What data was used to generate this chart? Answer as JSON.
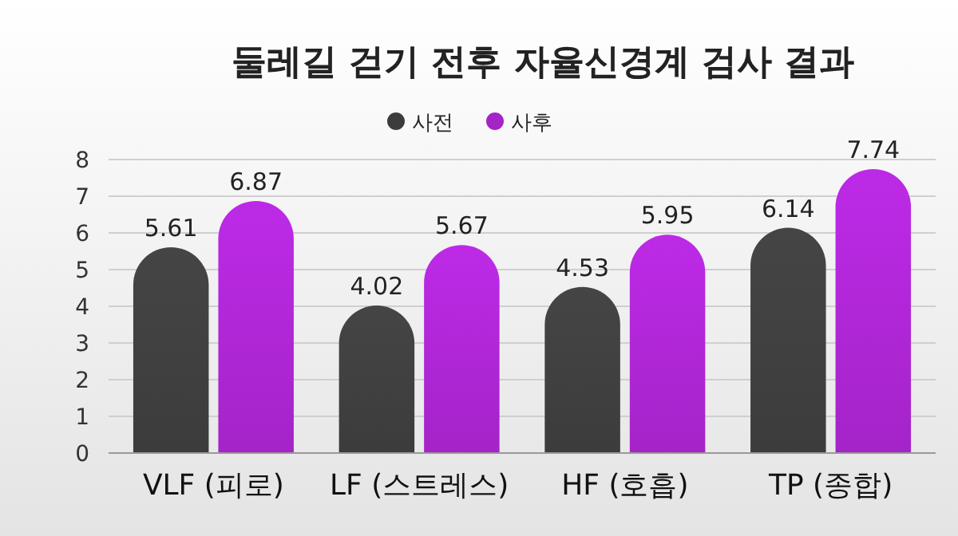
{
  "chart_data": {
    "type": "bar",
    "title": "둘레길 걷기 전후 자율신경계 검사 결과",
    "categories": [
      "VLF (피로)",
      "LF (스트레스)",
      "HF (호흡)",
      "TP (종합)"
    ],
    "series": [
      {
        "name": "사전",
        "color": "#3c3c3c",
        "values": [
          5.61,
          4.02,
          4.53,
          6.14
        ]
      },
      {
        "name": "사후",
        "color": "#a424c8",
        "values": [
          6.87,
          5.67,
          5.95,
          7.74
        ]
      }
    ],
    "ylim": [
      0,
      8
    ],
    "yticks": [
      0,
      1,
      2,
      3,
      4,
      5,
      6,
      7,
      8
    ],
    "grid": "y",
    "legend": "top",
    "data_labels": true
  }
}
